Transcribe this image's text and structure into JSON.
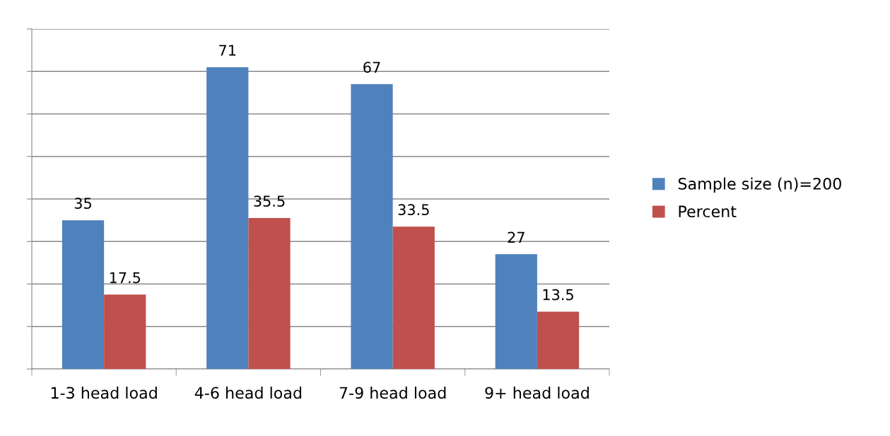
{
  "chart_data": {
    "type": "bar",
    "categories": [
      "1-3 head load",
      "4-6 head load",
      "7-9 head load",
      "9+ head load"
    ],
    "series": [
      {
        "name": "Sample size (n)=200",
        "color": "#4f81bd",
        "values": [
          35,
          71,
          67,
          27
        ]
      },
      {
        "name": "Percent",
        "color": "#c0504d",
        "values": [
          17.5,
          35.5,
          33.5,
          13.5
        ]
      }
    ],
    "ylim": [
      0,
      80
    ],
    "yticks": [
      {
        "value": 0,
        "label": null
      },
      {
        "value": 10,
        "label": null
      },
      {
        "value": 20,
        "label": null
      },
      {
        "value": 30,
        "label": null
      },
      {
        "value": 40,
        "label": null
      },
      {
        "value": 50,
        "label": null
      },
      {
        "value": 60,
        "label": null
      },
      {
        "value": 70,
        "label": null
      },
      {
        "value": 80,
        "label": null
      }
    ],
    "grid": "y",
    "legend": "right",
    "data_labels": true
  }
}
